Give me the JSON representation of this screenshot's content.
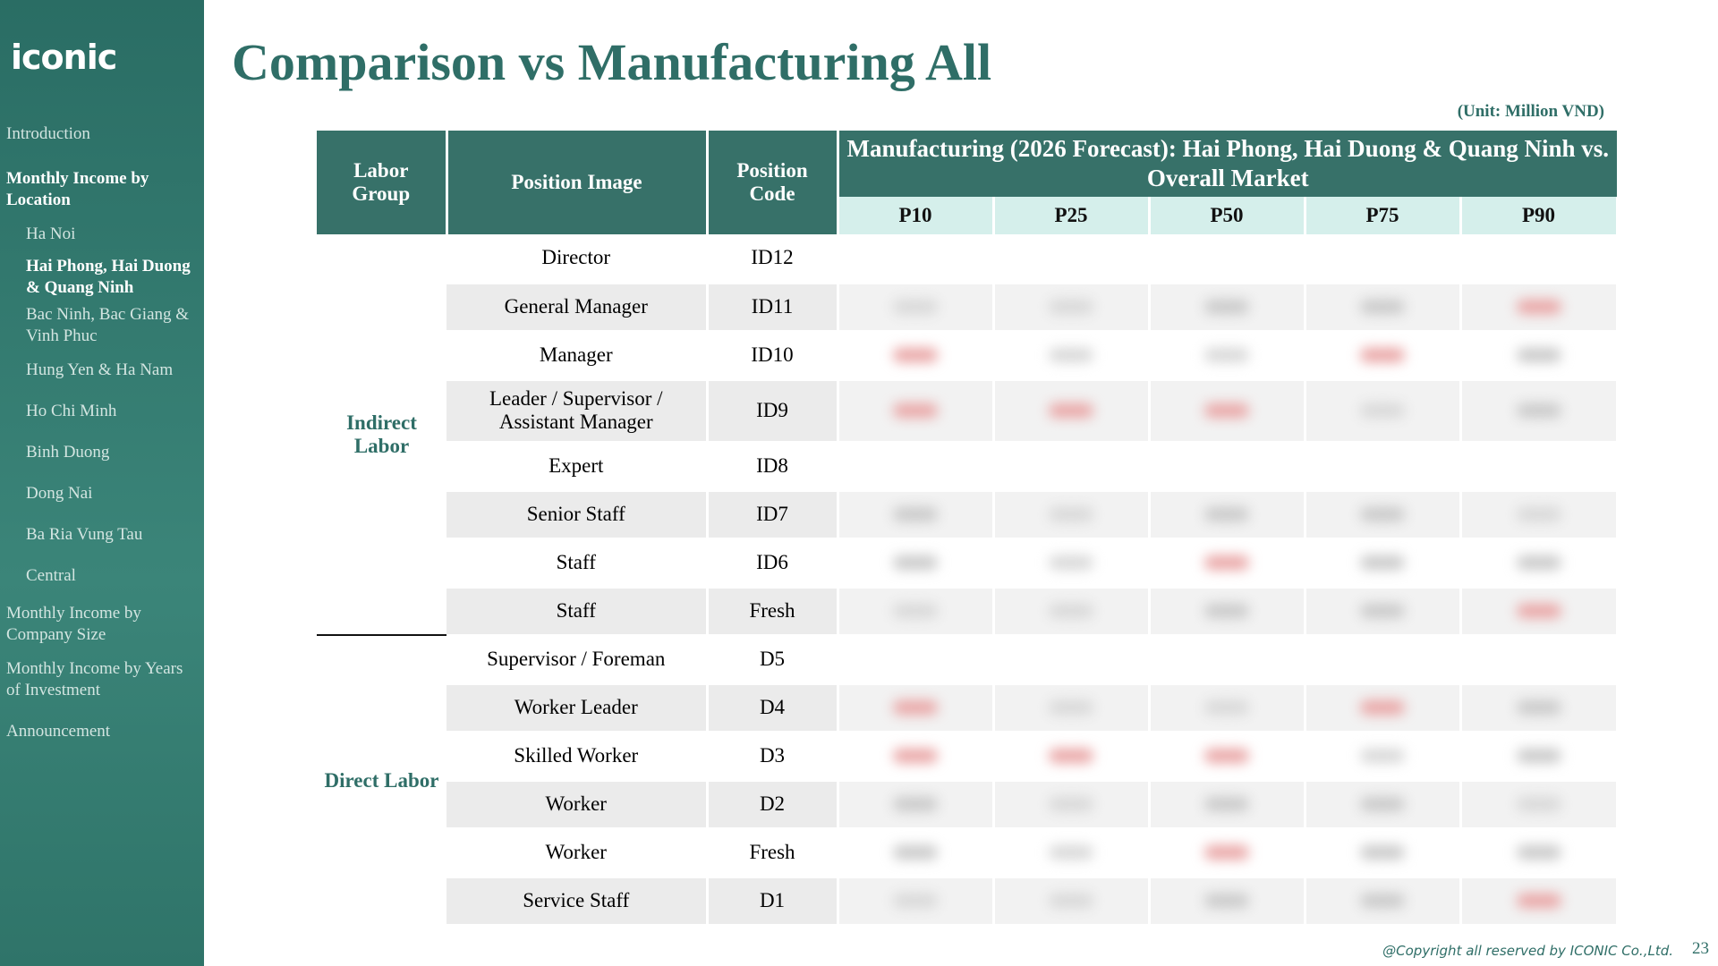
{
  "sidebar": {
    "logo": "iconic",
    "nav": [
      {
        "label": "Introduction",
        "indent": false,
        "active": false
      },
      {
        "label": "Monthly Income by Location",
        "indent": false,
        "active": true
      },
      {
        "label": "Ha Noi",
        "indent": true,
        "active": false
      },
      {
        "label": "Hai Phong, Hai Duong & Quang Ninh",
        "indent": true,
        "active": true
      },
      {
        "label": "Bac Ninh, Bac Giang & Vinh Phuc",
        "indent": true,
        "active": false
      },
      {
        "label": "Hung Yen & Ha Nam",
        "indent": true,
        "active": false
      },
      {
        "label": "Ho Chi Minh",
        "indent": true,
        "active": false
      },
      {
        "label": "Binh Duong",
        "indent": true,
        "active": false
      },
      {
        "label": "Dong Nai",
        "indent": true,
        "active": false
      },
      {
        "label": "Ba Ria Vung Tau",
        "indent": true,
        "active": false
      },
      {
        "label": "Central",
        "indent": true,
        "active": false
      },
      {
        "label": "Monthly Income by Company Size",
        "indent": false,
        "active": false
      },
      {
        "label": "Monthly Income by Years of Investment",
        "indent": false,
        "active": false
      },
      {
        "label": "Announcement",
        "indent": false,
        "active": false
      }
    ]
  },
  "header": {
    "title": "Comparison vs Manufacturing All",
    "unit": "(Unit: Million VND)"
  },
  "table": {
    "columns": [
      "Labor Group",
      "Position Image",
      "Position Code"
    ],
    "group_header": "Manufacturing (2026 Forecast): Hai Phong, Hai Duong & Quang Ninh vs. Overall Market",
    "percentiles": [
      "P10",
      "P25",
      "P50",
      "P75",
      "P90"
    ],
    "groups": [
      {
        "label": "Indirect Labor",
        "rows": [
          [
            "Director",
            "ID12"
          ],
          [
            "General Manager",
            "ID11"
          ],
          [
            "Manager",
            "ID10"
          ],
          [
            "Leader / Supervisor / Assistant Manager",
            "ID9"
          ],
          [
            "Expert",
            "ID8"
          ],
          [
            "Senior Staff",
            "ID7"
          ],
          [
            "Staff",
            "ID6"
          ],
          [
            "Staff",
            "Fresh"
          ]
        ]
      },
      {
        "label": "Direct Labor",
        "rows": [
          [
            "Supervisor / Foreman",
            "D5"
          ],
          [
            "Worker Leader",
            "D4"
          ],
          [
            "Skilled Worker",
            "D3"
          ],
          [
            "Worker",
            "D2"
          ],
          [
            "Worker",
            "Fresh"
          ],
          [
            "Service Staff",
            "D1"
          ]
        ]
      }
    ]
  },
  "footer": {
    "copyright": "@Copyright all reserved by ICONIC Co.,Ltd.",
    "page": 23
  }
}
